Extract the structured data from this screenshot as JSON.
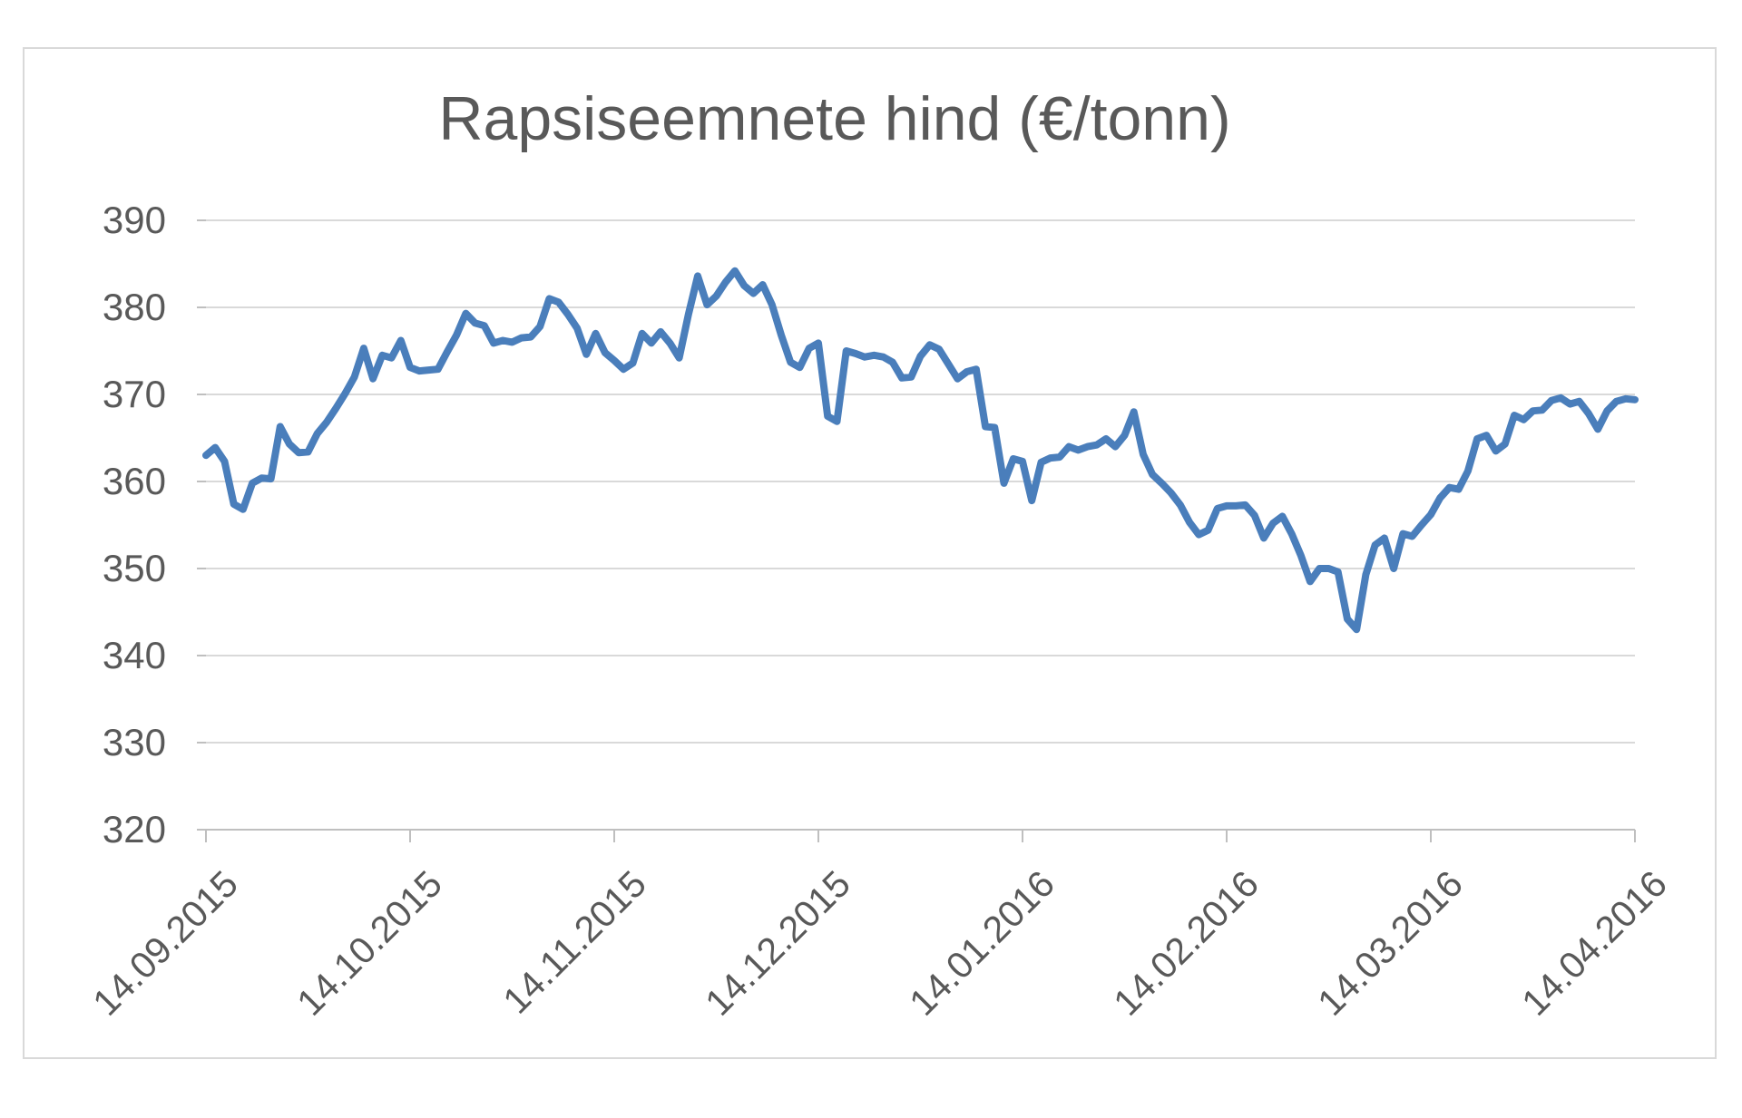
{
  "chart": {
    "colors": {
      "line": "#4a7ebb",
      "gridline": "#d9d9d9",
      "axis_line": "#bfbfbf",
      "tick_mark": "#bfbfbf",
      "text": "#595959",
      "frame_border": "#d9d9d9",
      "background": "#ffffff"
    }
  },
  "chart_data": {
    "type": "line",
    "title": "Rapsiseemnete hind (€/tonn)",
    "xlabel": "",
    "ylabel": "",
    "ylim": [
      320,
      390
    ],
    "y_ticks": [
      390,
      380,
      370,
      360,
      350,
      340,
      330,
      320
    ],
    "x_tick_labels": [
      "14.09.2015",
      "14.10.2015",
      "14.11.2015",
      "14.12.2015",
      "14.01.2016",
      "14.02.2016",
      "14.03.2016",
      "14.04.2016"
    ],
    "x_start": "14.09.2015",
    "x_end": "14.04.2016",
    "frequency": "daily quotes (business days), evenly spaced",
    "grid": "horizontal",
    "legend": "none",
    "series": [
      {
        "name": "Rapsiseemnete hind (€/tonn)",
        "values": [
          363.0,
          363.9,
          362.3,
          357.4,
          356.8,
          359.8,
          360.4,
          360.3,
          366.3,
          364.3,
          363.3,
          363.4,
          365.5,
          366.8,
          368.4,
          370.1,
          372.0,
          375.3,
          371.8,
          374.5,
          374.2,
          376.2,
          373.1,
          372.7,
          372.8,
          372.9,
          374.9,
          376.8,
          379.3,
          378.2,
          377.9,
          375.9,
          376.2,
          376.0,
          376.5,
          376.6,
          377.8,
          381.0,
          380.6,
          379.2,
          377.6,
          374.6,
          377.0,
          374.8,
          373.9,
          372.9,
          373.6,
          377.0,
          375.9,
          377.2,
          375.9,
          374.2,
          379.2,
          383.6,
          380.3,
          381.3,
          382.9,
          384.2,
          382.5,
          381.6,
          382.6,
          380.3,
          376.8,
          373.7,
          373.1,
          375.3,
          375.9,
          367.5,
          366.9,
          375.0,
          374.7,
          374.3,
          374.5,
          374.3,
          373.7,
          371.9,
          372.0,
          374.4,
          375.7,
          375.2,
          373.5,
          371.8,
          372.6,
          372.9,
          366.3,
          366.2,
          359.8,
          362.6,
          362.3,
          357.8,
          362.2,
          362.7,
          362.8,
          364.0,
          363.6,
          364.0,
          364.2,
          364.9,
          364.0,
          365.3,
          368.0,
          363.1,
          360.8,
          359.8,
          358.7,
          357.3,
          355.3,
          353.9,
          354.4,
          356.9,
          357.2,
          357.2,
          357.3,
          356.1,
          353.5,
          355.2,
          356.0,
          354.0,
          351.5,
          348.5,
          350.0,
          350.0,
          349.6,
          344.2,
          343.0,
          349.3,
          352.7,
          353.5,
          350.0,
          354.0,
          353.7,
          355.0,
          356.2,
          358.1,
          359.3,
          359.1,
          361.2,
          364.9,
          365.3,
          363.5,
          364.3,
          367.6,
          367.1,
          368.1,
          368.2,
          369.3,
          369.6,
          368.9,
          369.2,
          367.8,
          366.0,
          368.1,
          369.2,
          369.5,
          369.4
        ]
      }
    ]
  }
}
